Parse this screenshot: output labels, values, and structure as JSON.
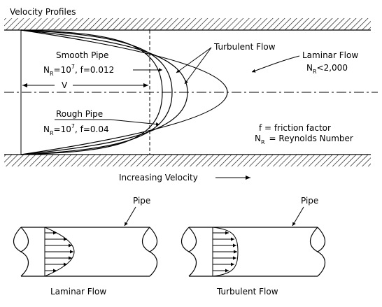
{
  "title": "Velocity Profiles",
  "smooth_pipe": {
    "label": "Smooth Pipe",
    "nr_symbol": "N",
    "nr_subscript": "R",
    "nr_equals": "=10",
    "nr_exponent": "7",
    "friction": ", f=0.012"
  },
  "rough_pipe": {
    "label": "Rough Pipe",
    "nr_symbol": "N",
    "nr_subscript": "R",
    "nr_equals": "=10",
    "nr_exponent": "7",
    "friction": ", f=0.04"
  },
  "velocity_label": "V",
  "turbulent_flow_label": "Turbulent Flow",
  "laminar_flow": {
    "label": "Laminar Flow",
    "nr_symbol": "N",
    "nr_subscript": "R",
    "nr_condition": "<2,000"
  },
  "legend": {
    "f_line": "f = friction factor",
    "nr_symbol": "N",
    "nr_subscript": "R",
    "nr_line": "= Reynolds Number"
  },
  "increasing_velocity": "Increasing Velocity",
  "bottom": {
    "left_pipe_label": "Pipe",
    "right_pipe_label": "Pipe",
    "left_caption": "Laminar Flow",
    "right_caption": "Turbulent Flow"
  }
}
